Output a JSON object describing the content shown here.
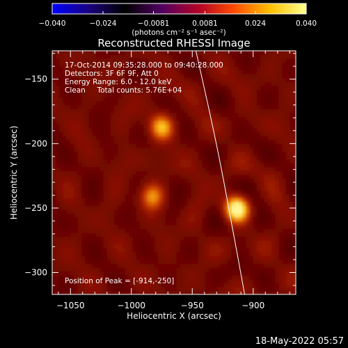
{
  "chart_data": {
    "type": "heatmap",
    "title": "Reconstructed RHESSI Image",
    "xlabel": "Heliocentric X (arcsec)",
    "ylabel": "Heliocentric Y (arcsec)",
    "xlim": [
      -1065,
      -865
    ],
    "ylim": [
      -317,
      -128
    ],
    "x_ticks": [
      -1050,
      -1000,
      -950,
      -900
    ],
    "x_tick_labels": [
      "−1050",
      "−1000",
      "−950",
      "−900"
    ],
    "y_ticks": [
      -150,
      -200,
      -250,
      -300
    ],
    "y_tick_labels": [
      "−150",
      "−200",
      "−250",
      "−300"
    ],
    "colorbar": {
      "range": [
        -0.04,
        0.04
      ],
      "ticks": [
        -0.04,
        -0.024,
        -0.0081,
        0.0081,
        0.024,
        0.04
      ],
      "tick_labels": [
        "−0.040",
        "−0.024",
        "−0.0081",
        "0.0081",
        "0.024",
        "0.040"
      ],
      "unit_label": "(photons cm⁻² s⁻¹ asec⁻²)",
      "stops": [
        "#0000ff",
        "#1a0080",
        "#000000",
        "#500060",
        "#b0002a",
        "#ff4a00",
        "#ffc000",
        "#ffff90"
      ]
    },
    "sources": [
      {
        "x": -913,
        "y": -250,
        "peak": 1.0
      },
      {
        "x": -975,
        "y": -187,
        "peak": 0.72
      },
      {
        "x": -983,
        "y": -240,
        "peak": 0.58
      }
    ],
    "limb": [
      {
        "x": -947,
        "y": -128
      },
      {
        "x": -930,
        "y": -200
      },
      {
        "x": -918,
        "y": -260
      },
      {
        "x": -907,
        "y": -317
      }
    ],
    "peak_position": [
      -914,
      -250
    ]
  },
  "annotations": {
    "time_range": "17-Oct-2014 09:35:28.000 to 09:40:28.000",
    "detectors": "Detectors: 3F 6F 9F, Att 0",
    "energy_range": "Energy Range: 6.0 - 12.0 keV",
    "clean_counts": "Clean     Total counts: 5.76E+04",
    "peak_position": "Position of Peak = [-914,-250]"
  },
  "footer": {
    "timestamp": "18-May-2022 05:57"
  }
}
